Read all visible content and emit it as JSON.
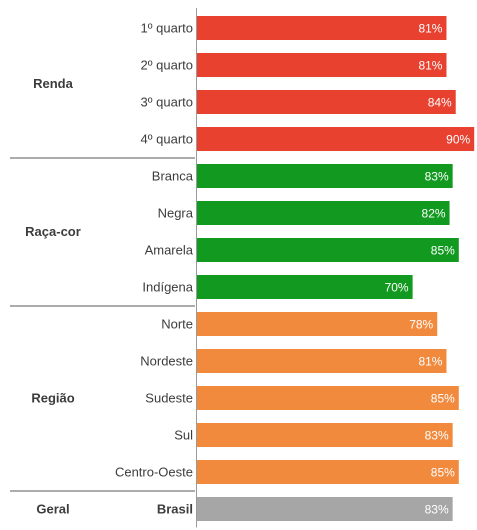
{
  "chart_data": {
    "type": "bar",
    "orientation": "horizontal",
    "x_unit": "%",
    "xlim": [
      0,
      90
    ],
    "grid": false,
    "legend": "none",
    "colors": {
      "Renda": "#e8412f",
      "Raça-cor": "#119a1f",
      "Região": "#f28a3e",
      "Geral": "#a6a6a6",
      "separator": "#7a7a7a",
      "axis": "#9a9a9a"
    },
    "groups": [
      {
        "name": "Renda",
        "categories": [
          "1º quarto",
          "2º quarto",
          "3º quarto",
          "4º quarto"
        ],
        "values": [
          81,
          81,
          84,
          90
        ],
        "labels": [
          "81%",
          "81%",
          "84%",
          "90%"
        ]
      },
      {
        "name": "Raça-cor",
        "categories": [
          "Branca",
          "Negra",
          "Amarela",
          "Indígena"
        ],
        "values": [
          83,
          82,
          85,
          70
        ],
        "labels": [
          "83%",
          "82%",
          "85%",
          "70%"
        ]
      },
      {
        "name": "Região",
        "categories": [
          "Norte",
          "Nordeste",
          "Sudeste",
          "Sul",
          "Centro-Oeste"
        ],
        "values": [
          78,
          81,
          85,
          83,
          85
        ],
        "labels": [
          "78%",
          "81%",
          "85%",
          "83%",
          "85%"
        ]
      },
      {
        "name": "Geral",
        "categories": [
          "Brasil"
        ],
        "values": [
          83
        ],
        "labels": [
          "83%"
        ]
      }
    ]
  }
}
